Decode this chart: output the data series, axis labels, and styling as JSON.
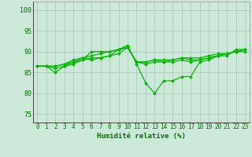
{
  "title": "",
  "xlabel": "Humidité relative (%)",
  "ylabel": "",
  "xlim": [
    -0.5,
    23.5
  ],
  "ylim": [
    73,
    102
  ],
  "yticks": [
    75,
    80,
    85,
    90,
    95,
    100
  ],
  "xticks": [
    0,
    1,
    2,
    3,
    4,
    5,
    6,
    7,
    8,
    9,
    10,
    11,
    12,
    13,
    14,
    15,
    16,
    17,
    18,
    19,
    20,
    21,
    22,
    23
  ],
  "bg_color": "#cce8d8",
  "grid_color": "#aaccbb",
  "line_color": "#00bb00",
  "series": [
    [
      86.5,
      86.5,
      85.0,
      86.5,
      87.0,
      88.0,
      90.0,
      90.0,
      90.0,
      90.5,
      91.5,
      87.0,
      82.5,
      80.0,
      83.0,
      83.0,
      84.0,
      84.0,
      87.5,
      88.0,
      89.0,
      89.0,
      90.5,
      90.5
    ],
    [
      86.5,
      86.5,
      86.0,
      86.5,
      87.5,
      88.5,
      88.0,
      88.5,
      89.0,
      90.5,
      91.0,
      87.5,
      87.0,
      87.5,
      87.5,
      87.5,
      88.0,
      87.5,
      88.0,
      88.5,
      89.0,
      89.5,
      90.0,
      90.0
    ],
    [
      86.5,
      86.5,
      86.5,
      87.0,
      87.5,
      88.0,
      88.5,
      88.5,
      89.0,
      89.5,
      91.0,
      87.5,
      87.5,
      88.0,
      87.5,
      88.0,
      88.5,
      88.0,
      88.0,
      88.5,
      89.0,
      89.5,
      90.0,
      90.5
    ],
    [
      86.5,
      86.5,
      86.5,
      87.0,
      88.0,
      88.5,
      89.0,
      89.5,
      90.0,
      90.5,
      91.0,
      87.5,
      87.5,
      88.0,
      88.0,
      88.0,
      88.5,
      88.5,
      88.5,
      89.0,
      89.5,
      89.5,
      90.0,
      90.5
    ]
  ],
  "tick_fontsize": 5.5,
  "xlabel_fontsize": 6.5,
  "marker": "D",
  "markersize": 2.0,
  "linewidth": 0.9
}
